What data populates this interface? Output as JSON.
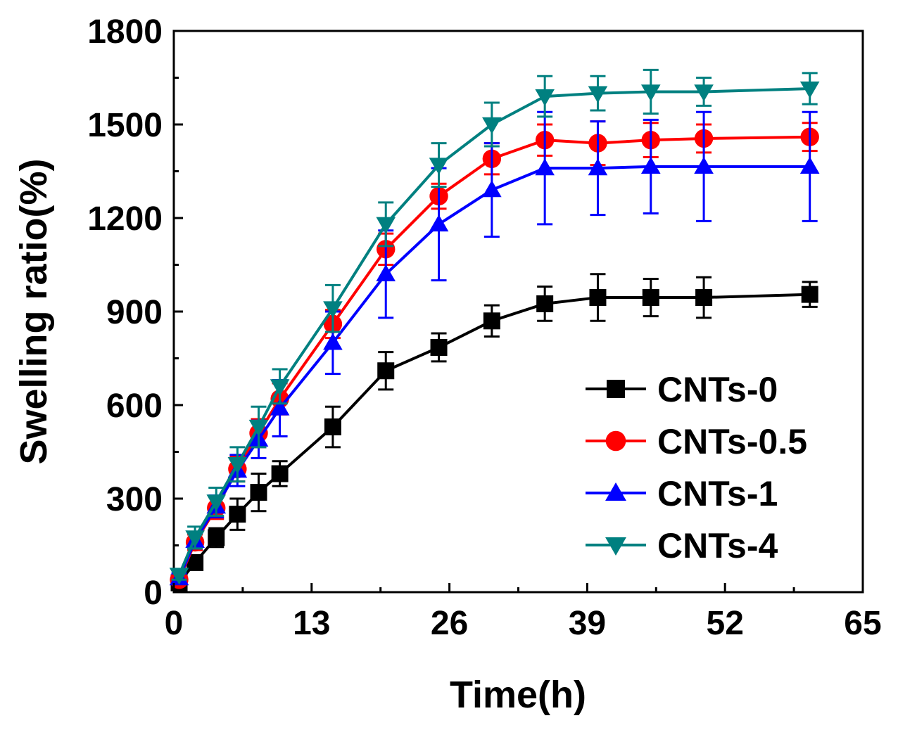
{
  "chart_data": {
    "type": "line",
    "title": "",
    "xlabel": "Time(h)",
    "ylabel": "Swelling ratio(%)",
    "xlim": [
      0,
      65
    ],
    "ylim": [
      0,
      1800
    ],
    "xticks": [
      0,
      13,
      26,
      39,
      52,
      65
    ],
    "yticks": [
      0,
      300,
      600,
      900,
      1200,
      1500,
      1800
    ],
    "grid": false,
    "legend": "lower-right",
    "x": [
      0.5,
      2,
      4,
      6,
      8,
      10,
      15,
      20,
      25,
      30,
      35,
      40,
      45,
      50,
      60
    ],
    "series": [
      {
        "name": "CNTs-0",
        "color": "#000000",
        "marker": "square",
        "values": [
          30,
          95,
          175,
          250,
          320,
          380,
          530,
          710,
          785,
          870,
          925,
          945,
          945,
          945,
          955
        ],
        "errors": [
          15,
          20,
          30,
          50,
          60,
          40,
          65,
          60,
          45,
          50,
          55,
          75,
          60,
          65,
          40
        ]
      },
      {
        "name": "CNTs-0.5",
        "color": "#ff0000",
        "marker": "circle",
        "values": [
          40,
          160,
          270,
          395,
          510,
          620,
          860,
          1100,
          1270,
          1390,
          1450,
          1440,
          1450,
          1455,
          1460
        ],
        "errors": [
          15,
          25,
          35,
          40,
          45,
          50,
          45,
          50,
          40,
          50,
          50,
          70,
          55,
          45,
          45
        ]
      },
      {
        "name": "CNTs-1",
        "color": "#0000ff",
        "marker": "triangle-up",
        "values": [
          45,
          165,
          275,
          390,
          490,
          590,
          800,
          1020,
          1180,
          1290,
          1360,
          1360,
          1365,
          1365,
          1365
        ],
        "errors": [
          15,
          25,
          35,
          50,
          60,
          90,
          100,
          140,
          180,
          150,
          180,
          150,
          150,
          175,
          175
        ]
      },
      {
        "name": "CNTs-4",
        "color": "#008080",
        "marker": "triangle-down",
        "values": [
          55,
          175,
          290,
          410,
          530,
          660,
          910,
          1180,
          1370,
          1500,
          1590,
          1600,
          1605,
          1605,
          1615
        ],
        "errors": [
          15,
          35,
          45,
          55,
          65,
          55,
          75,
          70,
          70,
          70,
          65,
          55,
          70,
          45,
          50
        ]
      }
    ]
  }
}
